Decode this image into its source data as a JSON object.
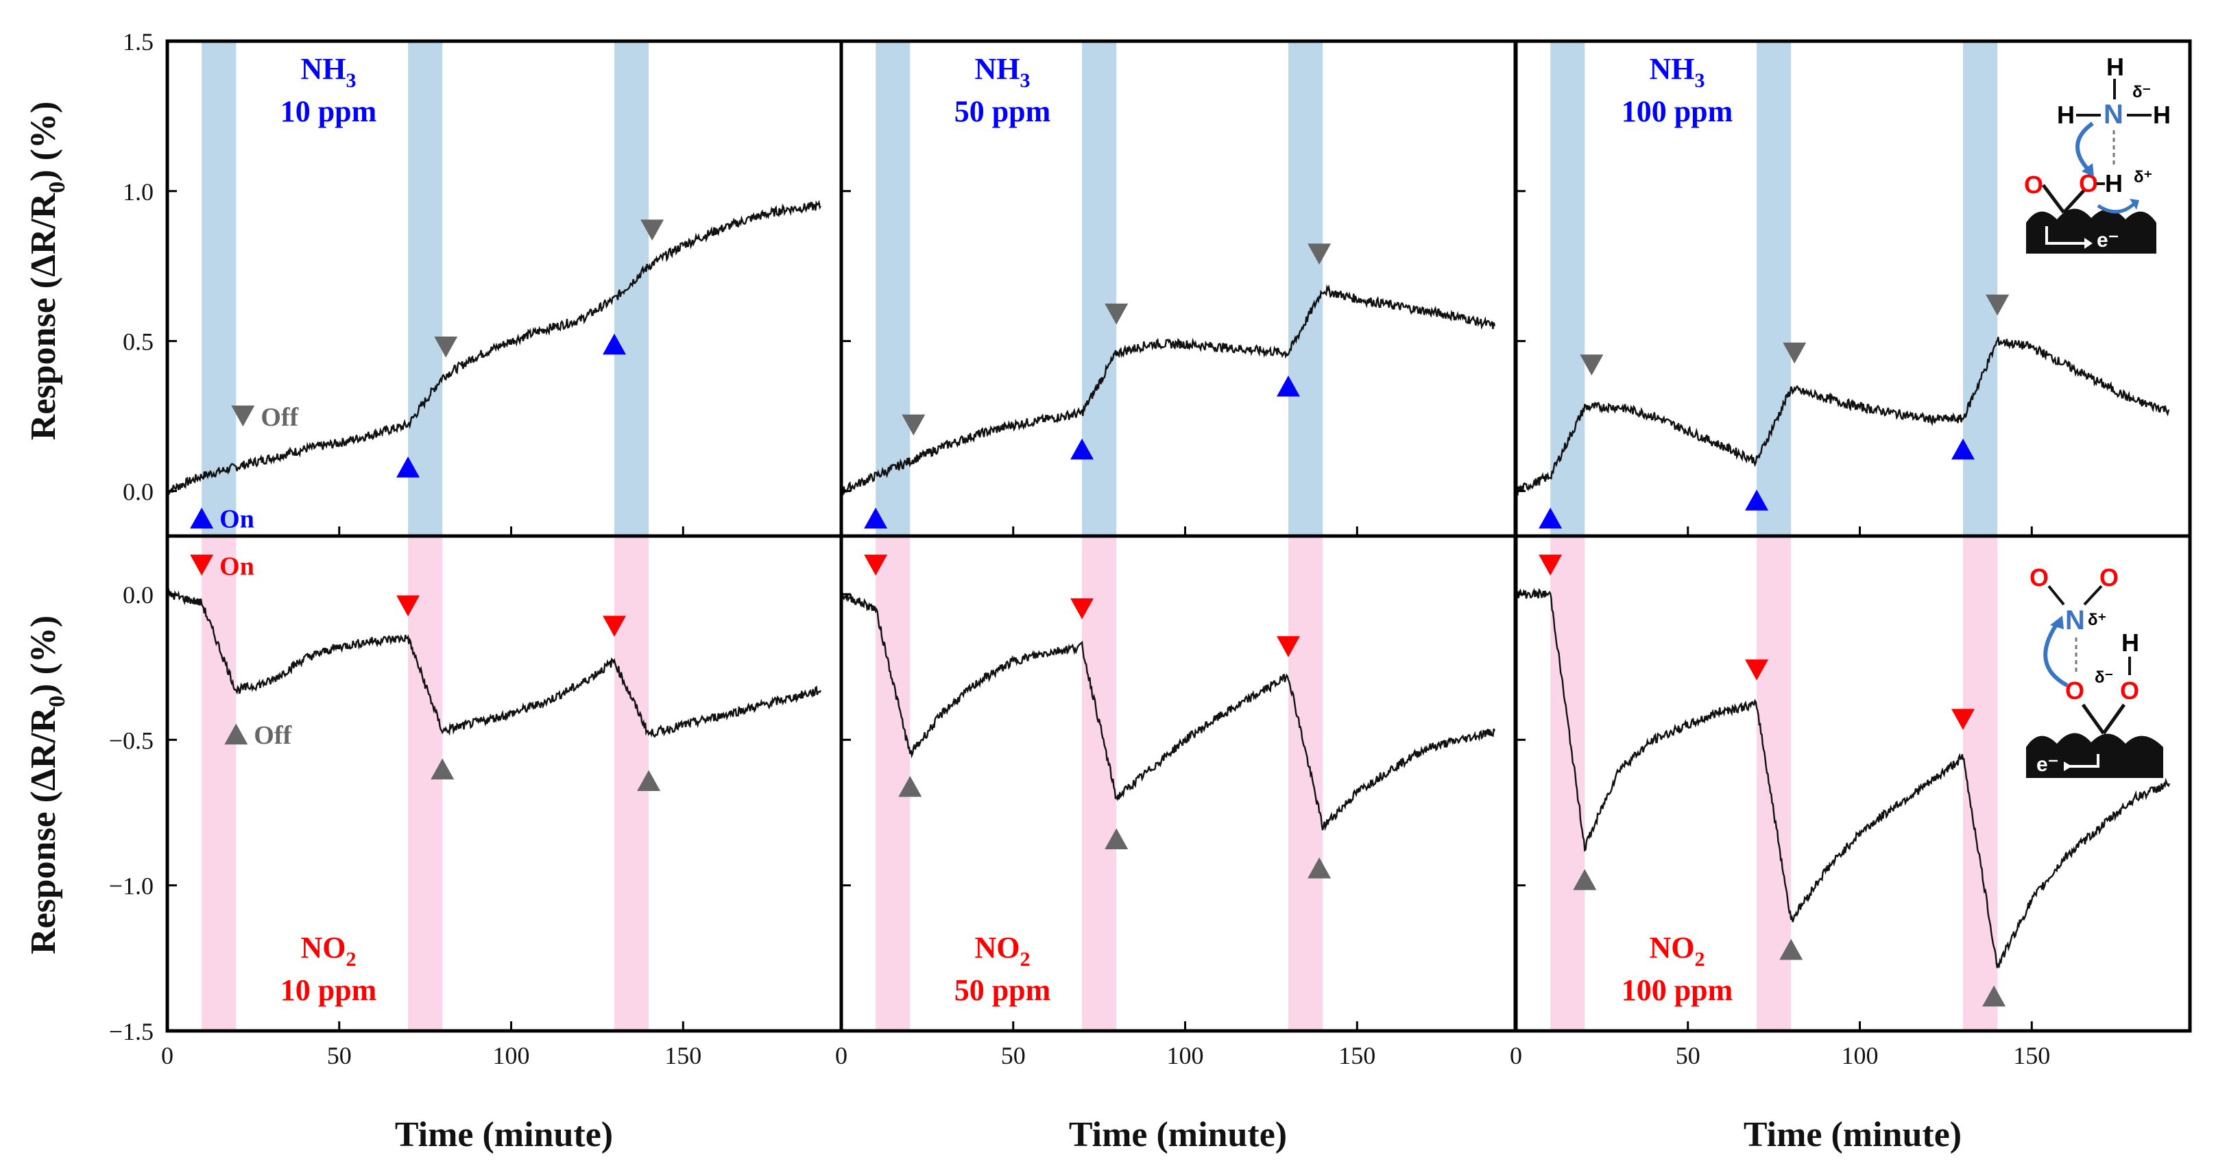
{
  "chart_data": {
    "type": "line",
    "layout": "2 rows x 3 columns, shared axes",
    "xlabel": "Time (minute)",
    "ylabel_main": "Response (ΔR/R",
    "ylabel_sub": "0",
    "ylabel_tail": ") (%)",
    "x_ticks": [
      0,
      50,
      100,
      150
    ],
    "x_tick_labels": [
      "0",
      "50",
      "100",
      "150"
    ],
    "rows": [
      {
        "gas": "NH3",
        "ylim": [
          -0.15,
          1.5
        ],
        "y_ticks": [
          1.5,
          1.0,
          0.5,
          0.0
        ],
        "y_tick_labels": [
          "1.5",
          "1.0",
          "0.5",
          "0.0"
        ],
        "band_color": "#bdd7ea",
        "on_color": "#0000ff",
        "off_color": "#666666"
      },
      {
        "gas": "NO2",
        "ylim": [
          -1.5,
          0.2
        ],
        "y_ticks": [
          0.0,
          -0.5,
          -1.0,
          -1.5
        ],
        "y_tick_labels": [
          "0.0",
          "−0.5",
          "−1.0",
          "−1.5"
        ],
        "band_color": "#fad6e8",
        "on_color": "#ff0000",
        "off_color": "#666666"
      }
    ],
    "gas_on_windows_min": [
      [
        10,
        20
      ],
      [
        70,
        80
      ],
      [
        130,
        140
      ]
    ],
    "panels": [
      {
        "row": 0,
        "col": 0,
        "label_gas": "NH",
        "label_sub": "3",
        "label_conc": "10 ppm",
        "on_label": "On",
        "off_label": "Off",
        "series": [
          [
            0,
            0.0
          ],
          [
            10,
            0.05
          ],
          [
            20,
            0.08
          ],
          [
            30,
            0.11
          ],
          [
            40,
            0.14
          ],
          [
            50,
            0.16
          ],
          [
            60,
            0.19
          ],
          [
            70,
            0.22
          ],
          [
            80,
            0.38
          ],
          [
            90,
            0.45
          ],
          [
            100,
            0.5
          ],
          [
            110,
            0.54
          ],
          [
            120,
            0.57
          ],
          [
            130,
            0.64
          ],
          [
            140,
            0.75
          ],
          [
            150,
            0.82
          ],
          [
            160,
            0.87
          ],
          [
            170,
            0.91
          ],
          [
            180,
            0.94
          ],
          [
            190,
            0.95
          ]
        ],
        "on_markers": [
          [
            10,
            -0.09
          ],
          [
            70,
            0.08
          ],
          [
            130,
            0.49
          ]
        ],
        "off_markers": [
          [
            22,
            0.25
          ],
          [
            81,
            0.48
          ],
          [
            141,
            0.87
          ]
        ]
      },
      {
        "row": 0,
        "col": 1,
        "label_gas": "NH",
        "label_sub": "3",
        "label_conc": "50 ppm",
        "series": [
          [
            0,
            0.0
          ],
          [
            10,
            0.05
          ],
          [
            20,
            0.1
          ],
          [
            30,
            0.15
          ],
          [
            40,
            0.19
          ],
          [
            50,
            0.22
          ],
          [
            60,
            0.24
          ],
          [
            70,
            0.26
          ],
          [
            80,
            0.46
          ],
          [
            90,
            0.49
          ],
          [
            100,
            0.49
          ],
          [
            110,
            0.48
          ],
          [
            120,
            0.47
          ],
          [
            130,
            0.46
          ],
          [
            140,
            0.67
          ],
          [
            150,
            0.64
          ],
          [
            160,
            0.62
          ],
          [
            170,
            0.6
          ],
          [
            180,
            0.58
          ],
          [
            190,
            0.55
          ]
        ],
        "on_markers": [
          [
            10,
            -0.09
          ],
          [
            70,
            0.14
          ],
          [
            130,
            0.35
          ]
        ],
        "off_markers": [
          [
            21,
            0.22
          ],
          [
            80,
            0.59
          ],
          [
            139,
            0.79
          ]
        ]
      },
      {
        "row": 0,
        "col": 2,
        "label_gas": "NH",
        "label_sub": "3",
        "label_conc": "100 ppm",
        "series": [
          [
            0,
            0.0
          ],
          [
            10,
            0.05
          ],
          [
            20,
            0.28
          ],
          [
            30,
            0.28
          ],
          [
            40,
            0.25
          ],
          [
            50,
            0.2
          ],
          [
            60,
            0.15
          ],
          [
            70,
            0.1
          ],
          [
            80,
            0.34
          ],
          [
            90,
            0.31
          ],
          [
            100,
            0.28
          ],
          [
            110,
            0.26
          ],
          [
            120,
            0.24
          ],
          [
            130,
            0.24
          ],
          [
            140,
            0.5
          ],
          [
            150,
            0.48
          ],
          [
            160,
            0.42
          ],
          [
            170,
            0.36
          ],
          [
            180,
            0.3
          ],
          [
            190,
            0.27
          ]
        ],
        "on_markers": [
          [
            10,
            -0.09
          ],
          [
            70,
            -0.03
          ],
          [
            130,
            0.14
          ]
        ],
        "off_markers": [
          [
            22,
            0.42
          ],
          [
            81,
            0.46
          ],
          [
            140,
            0.62
          ]
        ]
      },
      {
        "row": 1,
        "col": 0,
        "label_gas": "NO",
        "label_sub": "2",
        "label_conc": "10 ppm",
        "on_label": "On",
        "off_label": "Off",
        "series": [
          [
            0,
            0.0
          ],
          [
            10,
            -0.03
          ],
          [
            20,
            -0.33
          ],
          [
            30,
            -0.3
          ],
          [
            40,
            -0.22
          ],
          [
            50,
            -0.18
          ],
          [
            60,
            -0.16
          ],
          [
            70,
            -0.15
          ],
          [
            80,
            -0.47
          ],
          [
            90,
            -0.44
          ],
          [
            100,
            -0.41
          ],
          [
            110,
            -0.37
          ],
          [
            120,
            -0.31
          ],
          [
            130,
            -0.23
          ],
          [
            140,
            -0.48
          ],
          [
            150,
            -0.45
          ],
          [
            160,
            -0.42
          ],
          [
            170,
            -0.39
          ],
          [
            180,
            -0.36
          ],
          [
            190,
            -0.33
          ]
        ],
        "on_markers": [
          [
            10,
            0.1
          ],
          [
            70,
            -0.04
          ],
          [
            130,
            -0.11
          ]
        ],
        "off_markers": [
          [
            20,
            -0.48
          ],
          [
            80,
            -0.6
          ],
          [
            140,
            -0.64
          ]
        ]
      },
      {
        "row": 1,
        "col": 1,
        "label_gas": "NO",
        "label_sub": "2",
        "label_conc": "50 ppm",
        "series": [
          [
            0,
            0.0
          ],
          [
            10,
            -0.05
          ],
          [
            20,
            -0.55
          ],
          [
            30,
            -0.4
          ],
          [
            40,
            -0.3
          ],
          [
            50,
            -0.23
          ],
          [
            60,
            -0.2
          ],
          [
            70,
            -0.18
          ],
          [
            80,
            -0.7
          ],
          [
            90,
            -0.6
          ],
          [
            100,
            -0.5
          ],
          [
            110,
            -0.42
          ],
          [
            120,
            -0.35
          ],
          [
            130,
            -0.28
          ],
          [
            140,
            -0.8
          ],
          [
            150,
            -0.68
          ],
          [
            160,
            -0.6
          ],
          [
            170,
            -0.53
          ],
          [
            180,
            -0.5
          ],
          [
            190,
            -0.47
          ]
        ],
        "on_markers": [
          [
            10,
            0.1
          ],
          [
            70,
            -0.05
          ],
          [
            130,
            -0.18
          ]
        ],
        "off_markers": [
          [
            20,
            -0.66
          ],
          [
            80,
            -0.84
          ],
          [
            139,
            -0.94
          ]
        ]
      },
      {
        "row": 1,
        "col": 2,
        "label_gas": "NO",
        "label_sub": "2",
        "label_conc": "100 ppm",
        "series": [
          [
            0,
            0.0
          ],
          [
            10,
            0.0
          ],
          [
            20,
            -0.87
          ],
          [
            30,
            -0.6
          ],
          [
            40,
            -0.5
          ],
          [
            50,
            -0.45
          ],
          [
            60,
            -0.4
          ],
          [
            70,
            -0.38
          ],
          [
            80,
            -1.12
          ],
          [
            90,
            -0.95
          ],
          [
            100,
            -0.82
          ],
          [
            110,
            -0.73
          ],
          [
            120,
            -0.65
          ],
          [
            130,
            -0.56
          ],
          [
            140,
            -1.28
          ],
          [
            150,
            -1.05
          ],
          [
            160,
            -0.9
          ],
          [
            170,
            -0.8
          ],
          [
            180,
            -0.7
          ],
          [
            190,
            -0.65
          ]
        ],
        "on_markers": [
          [
            10,
            0.1
          ],
          [
            70,
            -0.26
          ],
          [
            130,
            -0.43
          ]
        ],
        "off_markers": [
          [
            20,
            -0.98
          ],
          [
            80,
            -1.22
          ],
          [
            139,
            -1.38
          ]
        ]
      }
    ]
  },
  "insets": {
    "nh3": {
      "N": "N",
      "H": "H",
      "O": "O",
      "e": "e⁻",
      "delta_minus": "δ⁻",
      "delta_plus": "δ⁺",
      "color_N": "#3a75c4",
      "color_O": "#ff0000"
    },
    "no2": {
      "N": "N",
      "H": "H",
      "O": "O",
      "e": "e⁻",
      "delta_minus": "δ⁻",
      "delta_plus": "δ⁺",
      "color_N": "#3a75c4",
      "color_O": "#ff0000"
    }
  }
}
